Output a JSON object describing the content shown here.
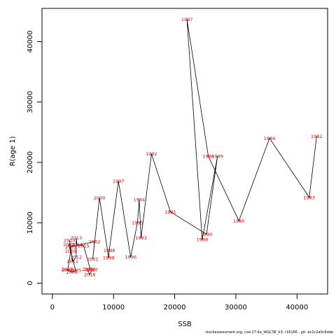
{
  "chart_data": {
    "type": "line",
    "title": "",
    "xlabel": "SSB",
    "ylabel": "R(age 1)",
    "xlim": [
      -1700,
      45000
    ],
    "ylim": [
      -1800,
      45500
    ],
    "xticks": [
      0,
      10000,
      20000,
      30000,
      40000
    ],
    "yticks": [
      0,
      10000,
      20000,
      30000,
      40000
    ],
    "grid": false,
    "line_color": "#000000",
    "label_color": "#e00000",
    "points": [
      {
        "label": "1982",
        "x": 43200,
        "y": 24300
      },
      {
        "label": "1983",
        "x": 42000,
        "y": 14200
      },
      {
        "label": "1984",
        "x": 35500,
        "y": 24000
      },
      {
        "label": "1985",
        "x": 30500,
        "y": 10300
      },
      {
        "label": "1986",
        "x": 25500,
        "y": 21000
      },
      {
        "label": "1987",
        "x": 22000,
        "y": 43700
      },
      {
        "label": "1988",
        "x": 24500,
        "y": 7200
      },
      {
        "label": "1989",
        "x": 27000,
        "y": 21000
      },
      {
        "label": "1990",
        "x": 25200,
        "y": 8100
      },
      {
        "label": "1991",
        "x": 19300,
        "y": 11800
      },
      {
        "label": "1992",
        "x": 16200,
        "y": 21400
      },
      {
        "label": "1993",
        "x": 14500,
        "y": 7500
      },
      {
        "label": "1994",
        "x": 14200,
        "y": 13800
      },
      {
        "label": "1995",
        "x": 13900,
        "y": 10000
      },
      {
        "label": "1996",
        "x": 12800,
        "y": 4300
      },
      {
        "label": "1997",
        "x": 10800,
        "y": 16900
      },
      {
        "label": "1998",
        "x": 9300,
        "y": 5400
      },
      {
        "label": "1999",
        "x": 9200,
        "y": 4200
      },
      {
        "label": "2000",
        "x": 7700,
        "y": 14100
      },
      {
        "label": "2001",
        "x": 6600,
        "y": 4000
      },
      {
        "label": "2002",
        "x": 6900,
        "y": 6900
      },
      {
        "label": "2003",
        "x": 3000,
        "y": 6000
      },
      {
        "label": "2004",
        "x": 2700,
        "y": 6400
      },
      {
        "label": "2005",
        "x": 3800,
        "y": 2100
      },
      {
        "label": "2006",
        "x": 3200,
        "y": 1800
      },
      {
        "label": "2007",
        "x": 2400,
        "y": 2300
      },
      {
        "label": "2008",
        "x": 2500,
        "y": 2200
      },
      {
        "label": "2009",
        "x": 3000,
        "y": 5300
      },
      {
        "label": "2010",
        "x": 2800,
        "y": 7100
      },
      {
        "label": "2011",
        "x": 3300,
        "y": 3600
      },
      {
        "label": "2012",
        "x": 3900,
        "y": 4300
      },
      {
        "label": "2013",
        "x": 3900,
        "y": 7500
      },
      {
        "label": "2014",
        "x": 4000,
        "y": 6400
      },
      {
        "label": "2015",
        "x": 5100,
        "y": 6200
      },
      {
        "label": "2016",
        "x": 6200,
        "y": 2300
      },
      {
        "label": "2017",
        "x": 6500,
        "y": 2200
      },
      {
        "label": "2018",
        "x": 6100,
        "y": 1400
      },
      {
        "label": "2019",
        "x": 5800,
        "y": 2300
      }
    ]
  },
  "footer": "stockassessment.org, cod.27.6a_WGCSE_b3, r16166 , git: ec2c2a0c6dde"
}
